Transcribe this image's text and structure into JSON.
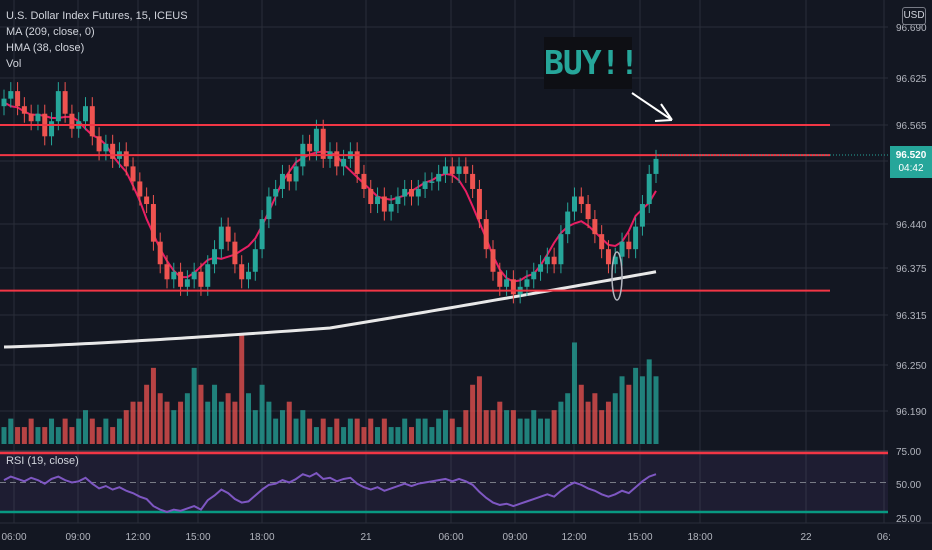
{
  "legend": {
    "symbol": "U.S. Dollar Index Futures, 15, ICEUS",
    "ma": "MA (209, close, 0)",
    "hma": "HMA (38, close)",
    "vol": "Vol"
  },
  "currency": "USD",
  "annotation": "BUY!!",
  "last_price": {
    "value": "96.520",
    "countdown": "04:42"
  },
  "rsi_label": "RSI (19, close)",
  "colors": {
    "up": "#26a69a",
    "down": "#ef5350",
    "level_line": "#f23645",
    "hma": "#e91e63",
    "ma": "#e8e8e8",
    "rsi": "#7e57c2"
  },
  "chart_data": {
    "type": "candlestick",
    "symbol": "U.S. Dollar Index Futures",
    "interval": "15",
    "exchange": "ICEUS",
    "x_ticks": [
      "06:00",
      "09:00",
      "12:00",
      "15:00",
      "18:00",
      "21",
      "06:00",
      "09:00",
      "12:00",
      "15:00",
      "18:00",
      "22",
      "06:"
    ],
    "y_ticks": [
      "96.690",
      "96.625",
      "96.565",
      "96.520",
      "96.440",
      "96.375",
      "96.315",
      "96.250",
      "96.190"
    ],
    "ylim": [
      96.17,
      96.7
    ],
    "candle_closes": [
      96.6,
      96.61,
      96.59,
      96.58,
      96.57,
      96.58,
      96.55,
      96.57,
      96.61,
      96.58,
      96.56,
      96.57,
      96.59,
      96.55,
      96.53,
      96.54,
      96.52,
      96.53,
      96.51,
      96.49,
      96.47,
      96.46,
      96.41,
      96.38,
      96.36,
      96.37,
      96.35,
      96.36,
      96.37,
      96.35,
      96.38,
      96.4,
      96.43,
      96.41,
      96.38,
      96.36,
      96.37,
      96.4,
      96.44,
      96.47,
      96.48,
      96.5,
      96.49,
      96.51,
      96.54,
      96.53,
      96.56,
      96.52,
      96.53,
      96.51,
      96.52,
      96.53,
      96.5,
      96.48,
      96.46,
      96.47,
      96.45,
      96.46,
      96.47,
      96.48,
      96.47,
      96.48,
      96.49,
      96.49,
      96.5,
      96.51,
      96.5,
      96.51,
      96.5,
      96.48,
      96.44,
      96.4,
      96.37,
      96.35,
      96.36,
      96.34,
      96.35,
      96.36,
      96.37,
      96.38,
      96.39,
      96.38,
      96.42,
      96.45,
      96.47,
      96.46,
      96.44,
      96.42,
      96.4,
      96.38,
      96.39,
      96.41,
      96.4,
      96.43,
      96.46,
      96.5,
      96.52
    ],
    "horizontal_levels": [
      96.565,
      96.525,
      96.345
    ],
    "volume": [
      2,
      3,
      2,
      2,
      3,
      2,
      2,
      3,
      2,
      3,
      2,
      3,
      4,
      3,
      2,
      3,
      2,
      3,
      4,
      5,
      5,
      7,
      9,
      6,
      5,
      4,
      5,
      6,
      9,
      7,
      5,
      7,
      5,
      6,
      5,
      13,
      6,
      4,
      7,
      5,
      3,
      4,
      5,
      3,
      4,
      3,
      2,
      3,
      2,
      3,
      2,
      3,
      3,
      2,
      3,
      2,
      3,
      2,
      2,
      3,
      2,
      3,
      3,
      2,
      3,
      4,
      3,
      2,
      4,
      7,
      8,
      4,
      4,
      5,
      4,
      4,
      3,
      3,
      4,
      3,
      3,
      4,
      5,
      6,
      12,
      7,
      5,
      6,
      4,
      5,
      6,
      8,
      7,
      9,
      8,
      10,
      8
    ],
    "rsi_ticks": [
      "75.00",
      "50.00",
      "25.00"
    ],
    "rsi_levels": [
      75,
      50,
      25
    ],
    "rsi_values": [
      52,
      55,
      53,
      51,
      54,
      52,
      49,
      53,
      55,
      52,
      50,
      51,
      54,
      49,
      45,
      47,
      44,
      46,
      43,
      41,
      38,
      36,
      30,
      27,
      25,
      27,
      26,
      28,
      30,
      27,
      35,
      39,
      44,
      41,
      36,
      33,
      34,
      39,
      44,
      48,
      49,
      52,
      50,
      53,
      57,
      55,
      58,
      53,
      54,
      51,
      53,
      54,
      49,
      46,
      44,
      46,
      43,
      45,
      47,
      49,
      47,
      49,
      50,
      51,
      52,
      53,
      51,
      53,
      51,
      48,
      42,
      37,
      33,
      31,
      32,
      30,
      32,
      34,
      36,
      38,
      40,
      38,
      43,
      47,
      50,
      48,
      45,
      43,
      40,
      38,
      40,
      43,
      41,
      46,
      51,
      55,
      57
    ]
  }
}
